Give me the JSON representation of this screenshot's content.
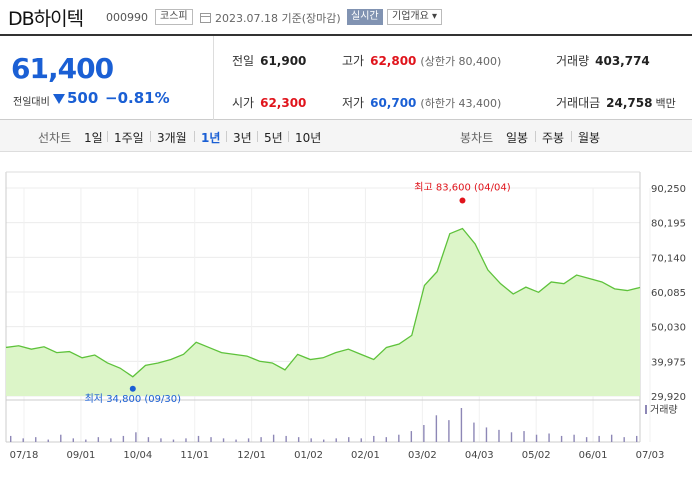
{
  "stock": {
    "name": "DB하이텍",
    "code": "000990",
    "market": "코스피",
    "date_text": "2023.07.18 기준(장마감)",
    "realtime_label": "실시간",
    "overview_label": "기업개요 ▾"
  },
  "summary": {
    "current_price": "61,400",
    "change_label": "전일대비",
    "change_value": "500",
    "change_rate": "−0.81%",
    "prev_close_label": "전일",
    "prev_close": "61,900",
    "high_label": "고가",
    "high": "62,800",
    "upper_limit": "(상한가 80,400)",
    "volume_label": "거래량",
    "volume": "403,774",
    "open_label": "시가",
    "open": "62,300",
    "low_label": "저가",
    "low": "60,700",
    "lower_limit": "(하한가 43,400)",
    "amount_label": "거래대금",
    "amount": "24,758",
    "amount_unit": "백만"
  },
  "periods": {
    "line_label": "선차트",
    "line_items": [
      "1일",
      "1주일",
      "3개월",
      "1년",
      "3년",
      "5년",
      "10년"
    ],
    "selected": "1년",
    "candle_label": "봉차트",
    "candle_items": [
      "일봉",
      "주봉",
      "월봉"
    ]
  },
  "colors": {
    "up": "#e0141c",
    "down": "#1a5fd4",
    "line": "#5ec23b",
    "fill": "#dcf5c8"
  },
  "chart_data": {
    "type": "area",
    "y_ticks": [
      "90,250",
      "80,195",
      "70,140",
      "60,085",
      "50,030",
      "39,975",
      "29,920"
    ],
    "ylim": [
      29920,
      90250
    ],
    "x_ticks": [
      "07/18",
      "09/01",
      "10/04",
      "11/01",
      "12/01",
      "01/02",
      "02/01",
      "03/02",
      "04/03",
      "05/02",
      "06/01",
      "07/03"
    ],
    "high_annotation": "최고 83,600 (04/04)",
    "low_annotation": "최저 34,800 (09/30)",
    "volume_label": "거래량",
    "series": [
      {
        "x": "07/18",
        "y": 44000
      },
      {
        "x": "07/25",
        "y": 44500
      },
      {
        "x": "08/01",
        "y": 43500
      },
      {
        "x": "08/08",
        "y": 44200
      },
      {
        "x": "08/15",
        "y": 42500
      },
      {
        "x": "08/22",
        "y": 42800
      },
      {
        "x": "09/01",
        "y": 41000
      },
      {
        "x": "09/08",
        "y": 41800
      },
      {
        "x": "09/15",
        "y": 39500
      },
      {
        "x": "09/22",
        "y": 38000
      },
      {
        "x": "09/30",
        "y": 35500
      },
      {
        "x": "10/04",
        "y": 38800
      },
      {
        "x": "10/11",
        "y": 39500
      },
      {
        "x": "10/18",
        "y": 40500
      },
      {
        "x": "10/25",
        "y": 42000
      },
      {
        "x": "11/01",
        "y": 45500
      },
      {
        "x": "11/08",
        "y": 44000
      },
      {
        "x": "11/15",
        "y": 42500
      },
      {
        "x": "11/22",
        "y": 42000
      },
      {
        "x": "12/01",
        "y": 41500
      },
      {
        "x": "12/08",
        "y": 40000
      },
      {
        "x": "12/15",
        "y": 39500
      },
      {
        "x": "12/22",
        "y": 37500
      },
      {
        "x": "01/02",
        "y": 42000
      },
      {
        "x": "01/09",
        "y": 40500
      },
      {
        "x": "01/16",
        "y": 41000
      },
      {
        "x": "01/25",
        "y": 42500
      },
      {
        "x": "02/01",
        "y": 43500
      },
      {
        "x": "02/08",
        "y": 42000
      },
      {
        "x": "02/15",
        "y": 40500
      },
      {
        "x": "02/22",
        "y": 44000
      },
      {
        "x": "03/02",
        "y": 45000
      },
      {
        "x": "03/09",
        "y": 47500
      },
      {
        "x": "03/16",
        "y": 62000
      },
      {
        "x": "03/23",
        "y": 66000
      },
      {
        "x": "03/30",
        "y": 77000
      },
      {
        "x": "04/04",
        "y": 78500
      },
      {
        "x": "04/11",
        "y": 74000
      },
      {
        "x": "04/18",
        "y": 66500
      },
      {
        "x": "04/25",
        "y": 62500
      },
      {
        "x": "05/02",
        "y": 59500
      },
      {
        "x": "05/09",
        "y": 61500
      },
      {
        "x": "05/16",
        "y": 60000
      },
      {
        "x": "05/23",
        "y": 63000
      },
      {
        "x": "06/01",
        "y": 62500
      },
      {
        "x": "06/08",
        "y": 65000
      },
      {
        "x": "06/15",
        "y": 64000
      },
      {
        "x": "06/22",
        "y": 63000
      },
      {
        "x": "07/03",
        "y": 61000
      },
      {
        "x": "07/10",
        "y": 60500
      },
      {
        "x": "07/18",
        "y": 61400
      }
    ],
    "volume_bars": [
      5,
      3,
      4,
      2,
      6,
      3,
      2,
      4,
      3,
      5,
      8,
      4,
      3,
      2,
      3,
      5,
      4,
      3,
      2,
      3,
      4,
      6,
      5,
      4,
      3,
      2,
      3,
      4,
      3,
      5,
      4,
      6,
      9,
      14,
      22,
      18,
      28,
      16,
      12,
      10,
      8,
      9,
      6,
      7,
      5,
      6,
      4,
      5,
      6,
      4,
      5
    ]
  }
}
